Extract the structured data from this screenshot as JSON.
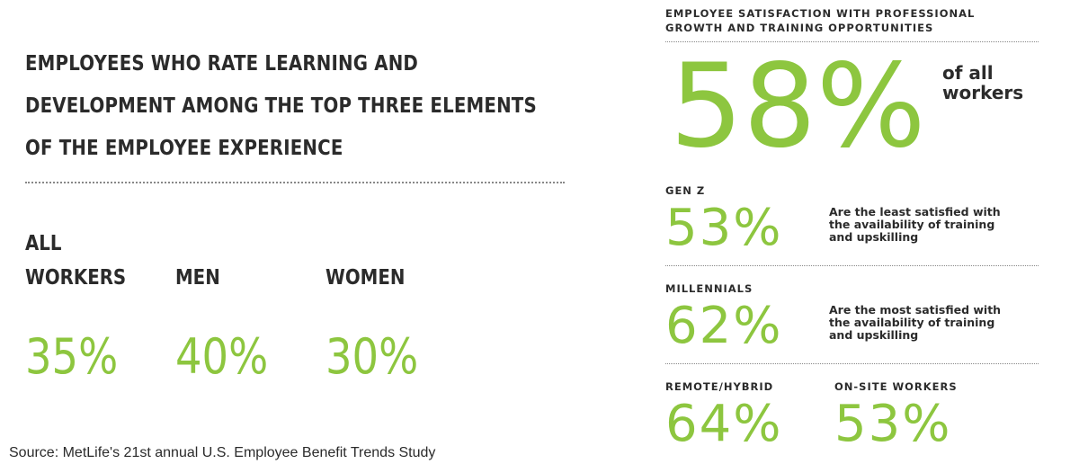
{
  "left": {
    "title_lines": [
      "EMPLOYEES WHO RATE LEARNING AND",
      "DEVELOPMENT AMONG THE TOP THREE ELEMENTS",
      "OF THE EMPLOYEE EXPERIENCE"
    ],
    "groups": [
      {
        "label": "ALL WORKERS",
        "value": "35%"
      },
      {
        "label": "MEN",
        "value": "40%"
      },
      {
        "label": "WOMEN",
        "value": "30%"
      }
    ]
  },
  "right": {
    "title_lines": [
      "EMPLOYEE SATISFACTION WITH PROFESSIONAL",
      "GROWTH AND TRAINING OPPORTUNITIES"
    ],
    "headline": {
      "value": "58%",
      "label": "of all workers"
    },
    "segments": [
      {
        "label": "GEN Z",
        "value": "53%",
        "note": "Are the least satisfied with the availability of training and upskilling"
      },
      {
        "label": "MILLENNIALS",
        "value": "62%",
        "note": "Are the most satisfied with the availability of training and upskilling"
      }
    ],
    "bottom": [
      {
        "label": "REMOTE/HYBRID",
        "value": "64%"
      },
      {
        "label": "ON-SITE WORKERS",
        "value": "53%"
      }
    ]
  },
  "source": "Source: MetLife's 21st annual U.S. Employee Benefit Trends Study"
}
